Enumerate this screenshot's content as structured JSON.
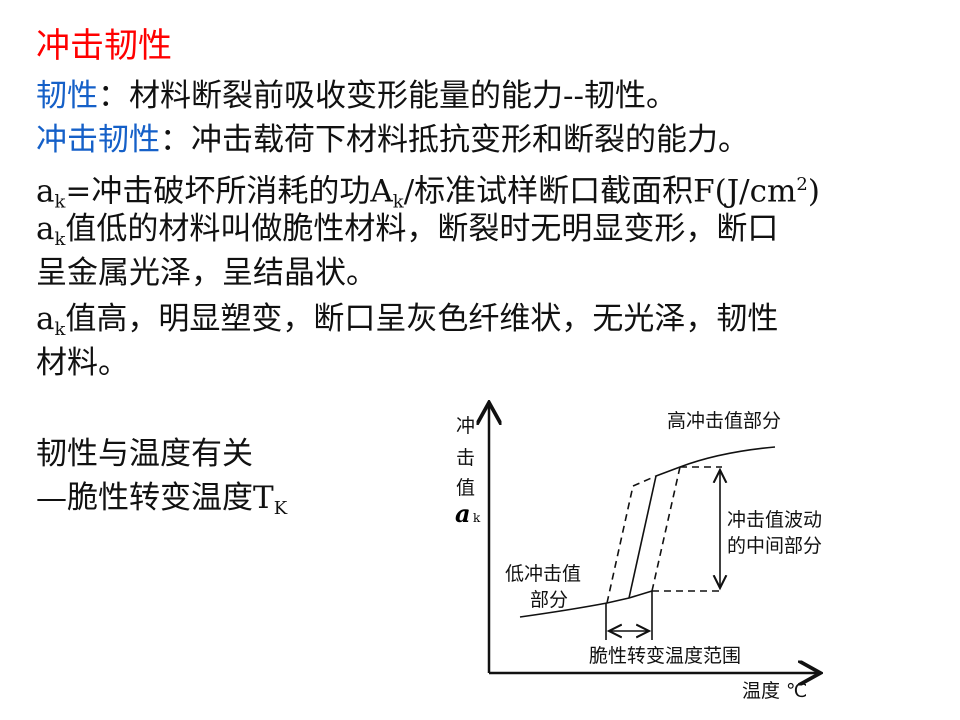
{
  "title": "冲击韧性",
  "lines": {
    "toughness_term": "韧性",
    "toughness_def": "：材料断裂前吸收变形能量的能力--韧性。",
    "impact_term": "冲击韧性",
    "impact_def": "：冲击载荷下材料抵抗变形和断裂的能力。",
    "ak_a": "a",
    "ak_k": "k",
    "formula_mid": "=冲击破坏所消耗的功A",
    "formula_k": "k",
    "formula_end": "/标准试样断口截面积F(J/cm",
    "formula_sup": "2",
    "formula_close": ")",
    "low_text": "值低的材料叫做脆性材料，断裂时无明显变形，断口",
    "low_text2": "呈金属光泽，呈结晶状。",
    "high_text": "值高，明显塑变，断口呈灰色纤维状，无光泽，韧性",
    "high_text2": "材料。",
    "temp_text": "韧性与温度有关",
    "trans_text": "—脆性转变温度T",
    "trans_sub": "K"
  },
  "diagram": {
    "y_label_chars": [
      "冲",
      "击",
      "值"
    ],
    "y_symbol": "a",
    "y_symbol_sub": "k",
    "x_label": "温度 ℃",
    "high_label": "高冲击值部分",
    "low_label_1": "低冲击值",
    "low_label_2": "部分",
    "mid_label_1": "冲击值波动",
    "mid_label_2": "的中间部分",
    "range_label": "脆性转变温度范围"
  }
}
